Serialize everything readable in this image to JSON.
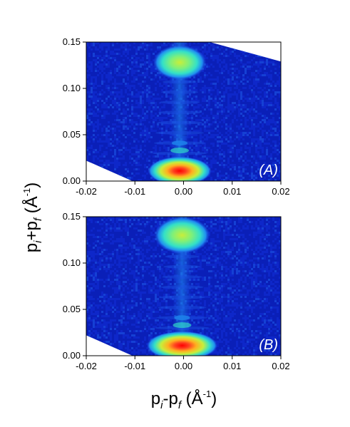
{
  "chart_data": {
    "type": "heatmap",
    "xlabel": {
      "base1": "p",
      "sub1": "i",
      "op": "-",
      "base2": "p",
      "sub2": "f",
      "unit_open": " (Å",
      "unit_sup": "-1",
      "unit_close": ")"
    },
    "ylabel": {
      "base1": "p",
      "sub1": "i",
      "op": "+",
      "base2": "p",
      "sub2": "f",
      "unit_open": " (Å",
      "unit_sup": "-1",
      "unit_close": ")"
    },
    "xlim": [
      -0.02,
      0.02
    ],
    "ylim": [
      0.0,
      0.15
    ],
    "x_ticks": [
      -0.02,
      -0.01,
      0.0,
      0.01,
      0.02
    ],
    "x_tick_labels": [
      "-0.02",
      "-0.01",
      "0.00",
      "0.01",
      "0.02"
    ],
    "y_ticks": [
      0.0,
      0.05,
      0.1,
      0.15
    ],
    "y_tick_labels": [
      "0.00",
      "0.05",
      "0.10",
      "0.15"
    ],
    "colormap": [
      "#0a1fb8",
      "#1a4fe0",
      "#1f8ff0",
      "#33e0c8",
      "#c8ee3a",
      "#ffb020",
      "#ff4020",
      "#ff0000"
    ],
    "panels": [
      {
        "label": "(A)",
        "data_boundary": {
          "bottom_edge": [
            [
              -0.02,
              0.022
            ],
            [
              -0.0105,
              0.0
            ]
          ],
          "top_edge": [
            [
              -0.02,
              0.15
            ],
            [
              0.0054,
              0.15
            ],
            [
              0.02,
              0.129
            ]
          ]
        },
        "peaks": [
          {
            "x": -0.0008,
            "y": 0.011,
            "intensity": 1.0,
            "sx": 0.0025,
            "sy": 0.007
          },
          {
            "x": -0.0008,
            "y": 0.128,
            "intensity": 0.55,
            "sx": 0.0021,
            "sy": 0.0085
          }
        ]
      },
      {
        "label": "(B)",
        "data_boundary": {
          "bottom_edge": [
            [
              -0.02,
              0.022
            ],
            [
              -0.0105,
              0.0
            ]
          ],
          "top_edge": [
            [
              -0.02,
              0.15
            ],
            [
              0.02,
              0.15
            ]
          ]
        },
        "peaks": [
          {
            "x": -0.0003,
            "y": 0.011,
            "intensity": 1.0,
            "sx": 0.0028,
            "sy": 0.007
          },
          {
            "x": -0.0003,
            "y": 0.13,
            "intensity": 0.6,
            "sx": 0.0022,
            "sy": 0.009
          }
        ]
      }
    ]
  }
}
